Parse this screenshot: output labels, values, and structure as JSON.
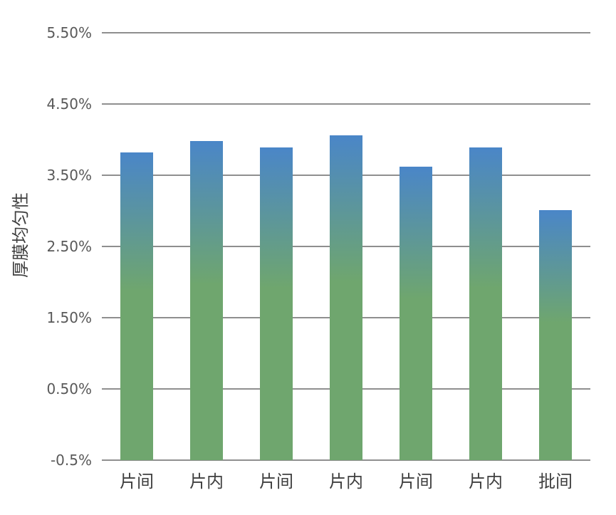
{
  "chart_data": {
    "type": "bar",
    "title": "",
    "xlabel": "",
    "ylabel": "厚膜均匀性",
    "categories": [
      "片间",
      "片内",
      "片间",
      "片内",
      "片间",
      "片内",
      "批间"
    ],
    "series": [
      {
        "values": [
          3.82,
          3.98,
          3.89,
          4.06,
          3.62,
          3.89,
          3.01
        ]
      }
    ],
    "ylim": [
      -0.5,
      5.5
    ],
    "yticks": [
      {
        "value": 5.5,
        "label": "5.50%"
      },
      {
        "value": 4.5,
        "label": "4.50%"
      },
      {
        "value": 3.5,
        "label": "3.50%"
      },
      {
        "value": 2.5,
        "label": "2.50%"
      },
      {
        "value": 1.5,
        "label": "1.50%"
      },
      {
        "value": 0.5,
        "label": "0.50%"
      },
      {
        "value": -0.5,
        "label": "-0.5%"
      }
    ],
    "grid": true,
    "legend": "none",
    "colors": {
      "bar_top": "#4a86c8",
      "bar_bottom": "#6fa66e",
      "grid": "#1f1f1f"
    }
  }
}
